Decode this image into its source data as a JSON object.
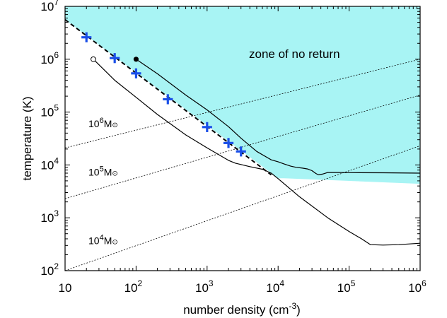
{
  "chart_data": {
    "type": "line",
    "xlabel": "number density (cm",
    "xlabel_sup": "-3",
    "xlabel_close": ")",
    "ylabel": "temperature (K)",
    "xscale": "log",
    "yscale": "log",
    "xlim": [
      10,
      1000000
    ],
    "ylim": [
      100,
      10000000
    ],
    "x_ticks": [
      {
        "value": 10,
        "base": "10",
        "exp": ""
      },
      {
        "value": 100,
        "base": "10",
        "exp": "2"
      },
      {
        "value": 1000,
        "base": "10",
        "exp": "3"
      },
      {
        "value": 10000,
        "base": "10",
        "exp": "4"
      },
      {
        "value": 100000,
        "base": "10",
        "exp": "5"
      },
      {
        "value": 1000000,
        "base": "10",
        "exp": "6"
      }
    ],
    "y_ticks": [
      {
        "value": 100,
        "base": "10",
        "exp": "2"
      },
      {
        "value": 1000,
        "base": "10",
        "exp": "3"
      },
      {
        "value": 10000,
        "base": "10",
        "exp": "4"
      },
      {
        "value": 100000,
        "base": "10",
        "exp": "5"
      },
      {
        "value": 1000000,
        "base": "10",
        "exp": "6"
      },
      {
        "value": 10000000,
        "base": "10",
        "exp": "7"
      }
    ],
    "zone": {
      "label": "zone of no return",
      "color": "#a8f4f4",
      "boundary": [
        [
          10,
          5600000
        ],
        [
          10000,
          5600
        ],
        [
          12000,
          5600
        ],
        [
          1000000,
          4400
        ]
      ]
    },
    "fit_line": {
      "style": "dashed",
      "points": [
        [
          10,
          5600000
        ],
        [
          8000,
          6500
        ]
      ]
    },
    "series": [
      {
        "marker_start": "filled-circle",
        "points": [
          [
            100,
            1000000
          ],
          [
            200,
            530000
          ],
          [
            500,
            210000
          ],
          [
            1000,
            110000
          ],
          [
            2000,
            53000
          ],
          [
            3000,
            32000
          ],
          [
            5000,
            18000
          ],
          [
            8000,
            12500
          ],
          [
            10000,
            11500
          ],
          [
            12000,
            10500
          ],
          [
            15000,
            9500
          ],
          [
            18000,
            9000
          ],
          [
            22000,
            8700
          ],
          [
            26000,
            8400
          ],
          [
            30000,
            7800
          ],
          [
            34000,
            6900
          ],
          [
            37000,
            6500
          ],
          [
            42000,
            6700
          ],
          [
            50000,
            7200
          ],
          [
            70000,
            7200
          ],
          [
            100000,
            7150
          ],
          [
            300000,
            7100
          ],
          [
            1000000,
            7000
          ]
        ]
      },
      {
        "marker_start": "open-circle",
        "points": [
          [
            25,
            1000000
          ],
          [
            50,
            400000
          ],
          [
            100,
            190000
          ],
          [
            200,
            90000
          ],
          [
            500,
            37000
          ],
          [
            1000,
            21000
          ],
          [
            2000,
            12200
          ],
          [
            2500,
            10800
          ],
          [
            3000,
            10200
          ],
          [
            4000,
            9300
          ],
          [
            6000,
            8300
          ],
          [
            8000,
            7000
          ],
          [
            10000,
            5500
          ],
          [
            20000,
            2500
          ],
          [
            50000,
            1000
          ],
          [
            100000,
            550
          ],
          [
            150000,
            400
          ],
          [
            200000,
            310
          ],
          [
            300000,
            305
          ],
          [
            500000,
            310
          ],
          [
            1000000,
            330
          ]
        ]
      }
    ],
    "data_markers": {
      "style": "plus",
      "color": "#1a4fe8",
      "points": [
        [
          20,
          2600000
        ],
        [
          50,
          1050000
        ],
        [
          100,
          540000
        ],
        [
          280,
          175000
        ],
        [
          1000,
          52000
        ],
        [
          2000,
          26000
        ],
        [
          3000,
          18000
        ]
      ]
    },
    "mass_lines": [
      {
        "label": "10",
        "exp": "6",
        "unit": "M",
        "sun": "⊙",
        "points": [
          [
            10,
            21000
          ],
          [
            1000000,
            1000000
          ]
        ]
      },
      {
        "label": "10",
        "exp": "5",
        "unit": "M",
        "sun": "⊙",
        "points": [
          [
            10,
            2300
          ],
          [
            1000000,
            210000
          ]
        ]
      },
      {
        "label": "10",
        "exp": "4",
        "unit": "M",
        "sun": "⊙",
        "points": [
          [
            10,
            100
          ],
          [
            1000000,
            23000
          ]
        ]
      }
    ]
  }
}
